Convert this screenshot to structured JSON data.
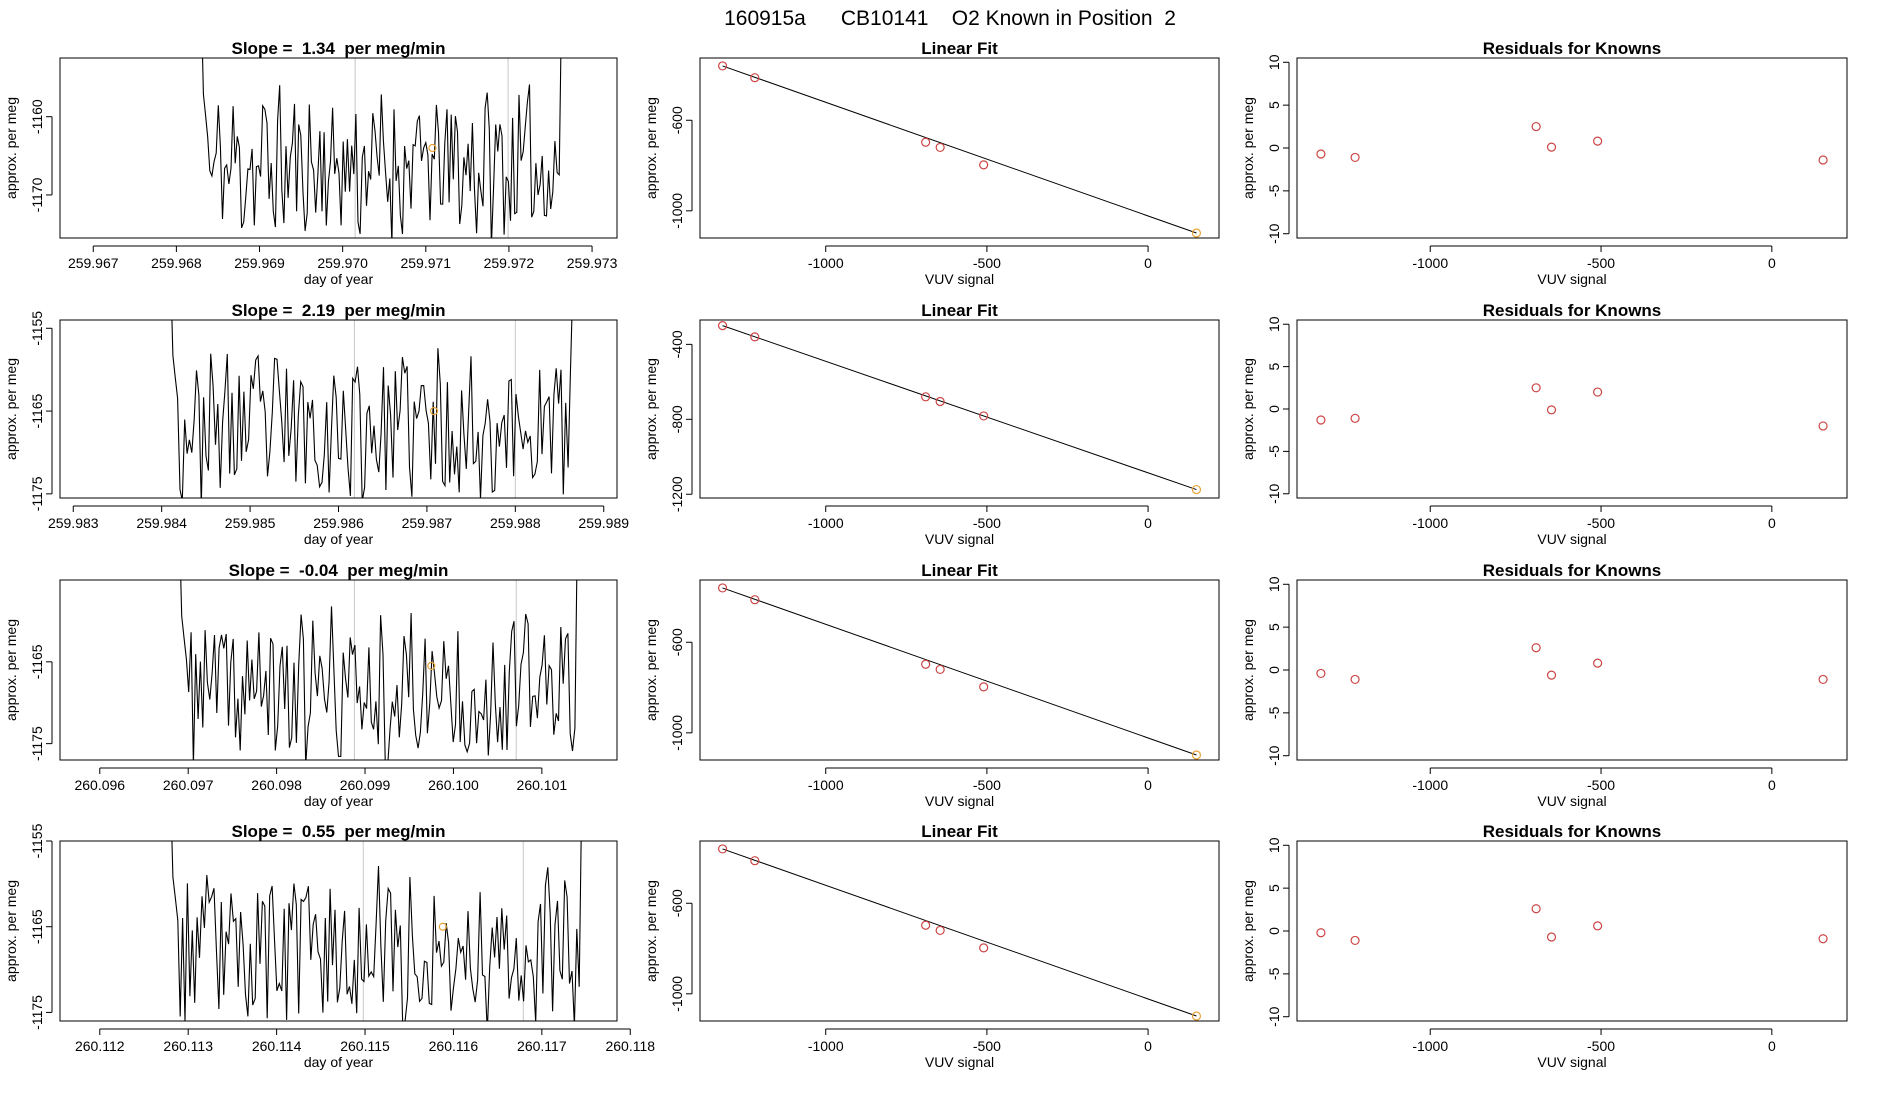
{
  "figure_title": "160915a      CB10141    O2 Known in Position  2",
  "colors": {
    "trace": "#000000",
    "marker": "#e8a33a",
    "residual": "#cc4444",
    "grid": "#c8c8c8",
    "fit": "#000000"
  },
  "chart_data": [
    {
      "type": "line",
      "row": 0,
      "col": 0,
      "title": "Slope =  1.34  per meg/min",
      "xlabel": "day of year",
      "ylabel": "approx. per meg",
      "xlim": [
        259.9666,
        259.9733
      ],
      "ylim": [
        -1175.5,
        -1152.5
      ],
      "xticks": [
        "259.967",
        "259.968",
        "259.969",
        "259.970",
        "259.971",
        "259.972",
        "259.973"
      ],
      "yticks": [
        -1160,
        -1170
      ],
      "vlines": [
        259.97015,
        259.97199
      ],
      "series_start": 259.9683,
      "series_end": 259.97263,
      "seed": 11,
      "highlight": {
        "x": 259.97108,
        "y": -1164
      }
    },
    {
      "type": "line",
      "row": 1,
      "col": 0,
      "title": "Slope =  2.19  per meg/min",
      "xlabel": "day of year",
      "ylabel": "approx. per meg",
      "xlim": [
        259.98285,
        259.98915
      ],
      "ylim": [
        -1175.5,
        -1154
      ],
      "xticks": [
        "259.983",
        "259.984",
        "259.985",
        "259.986",
        "259.987",
        "259.988",
        "259.989"
      ],
      "yticks": [
        -1155,
        -1165,
        -1175
      ],
      "vlines": [
        259.98618,
        259.988
      ],
      "series_start": 259.9841,
      "series_end": 259.98865,
      "seed": 23,
      "highlight": {
        "x": 259.98708,
        "y": -1165
      }
    },
    {
      "type": "line",
      "row": 2,
      "col": 0,
      "title": "Slope =  -0.04  per meg/min",
      "xlabel": "day of year",
      "ylabel": "approx. per meg",
      "xlim": [
        260.09555,
        260.10185
      ],
      "ylim": [
        -1177,
        -1155
      ],
      "xticks": [
        "260.096",
        "260.097",
        "260.098",
        "260.099",
        "260.100",
        "260.101"
      ],
      "yticks": [
        -1165,
        -1175
      ],
      "vlines": [
        260.09888,
        260.10071
      ],
      "series_start": 260.0969,
      "series_end": 260.1014,
      "seed": 37,
      "highlight": {
        "x": 260.09975,
        "y": -1165.5
      }
    },
    {
      "type": "line",
      "row": 3,
      "col": 0,
      "title": "Slope =  0.55  per meg/min",
      "xlabel": "day of year",
      "ylabel": "approx. per meg",
      "xlim": [
        260.11155,
        260.11785
      ],
      "ylim": [
        -1176,
        -1155
      ],
      "xticks": [
        "260.112",
        "260.113",
        "260.114",
        "260.115",
        "260.116",
        "260.117",
        "260.118"
      ],
      "yticks": [
        -1155,
        -1165,
        -1175
      ],
      "vlines": [
        260.11498,
        260.11679
      ],
      "series_start": 260.1128,
      "series_end": 260.11745,
      "seed": 53,
      "highlight": {
        "x": 260.11588,
        "y": -1165
      }
    },
    {
      "type": "scatter",
      "row": 0,
      "col": 1,
      "title": "Linear Fit",
      "xlabel": "VUV signal",
      "ylabel": "approx. per meg",
      "xlim": [
        -1390,
        220
      ],
      "ylim": [
        -1120,
        -325
      ],
      "xticks": [
        -1000,
        -500,
        0
      ],
      "yticks": [
        -600,
        -1000
      ],
      "points": [
        [
          -1320,
          -360
        ],
        [
          -1220,
          -412
        ],
        [
          -690,
          -697
        ],
        [
          -645,
          -720
        ],
        [
          -510,
          -797
        ],
        [
          150,
          -1098
        ]
      ],
      "highlight_index": 5,
      "fit_line": [
        [
          -1320,
          -360
        ],
        [
          150,
          -1098
        ]
      ]
    },
    {
      "type": "scatter",
      "row": 1,
      "col": 1,
      "title": "Linear Fit",
      "xlabel": "VUV signal",
      "ylabel": "approx. per meg",
      "xlim": [
        -1390,
        220
      ],
      "ylim": [
        -1220,
        -270
      ],
      "xticks": [
        -1000,
        -500,
        0
      ],
      "yticks": [
        -400,
        -800,
        -1200
      ],
      "points": [
        [
          -1320,
          -300
        ],
        [
          -1220,
          -360
        ],
        [
          -690,
          -680
        ],
        [
          -645,
          -705
        ],
        [
          -510,
          -782
        ],
        [
          150,
          -1175
        ]
      ],
      "highlight_index": 5,
      "fit_line": [
        [
          -1320,
          -300
        ],
        [
          150,
          -1175
        ]
      ]
    },
    {
      "type": "scatter",
      "row": 2,
      "col": 1,
      "title": "Linear Fit",
      "xlabel": "VUV signal",
      "ylabel": "approx. per meg",
      "xlim": [
        -1390,
        220
      ],
      "ylim": [
        -1120,
        -325
      ],
      "xticks": [
        -1000,
        -500,
        0
      ],
      "yticks": [
        -600,
        -1000
      ],
      "points": [
        [
          -1320,
          -360
        ],
        [
          -1220,
          -412
        ],
        [
          -690,
          -697
        ],
        [
          -645,
          -720
        ],
        [
          -510,
          -797
        ],
        [
          150,
          -1098
        ]
      ],
      "highlight_index": 5,
      "fit_line": [
        [
          -1320,
          -360
        ],
        [
          150,
          -1098
        ]
      ]
    },
    {
      "type": "scatter",
      "row": 3,
      "col": 1,
      "title": "Linear Fit",
      "xlabel": "VUV signal",
      "ylabel": "approx. per meg",
      "xlim": [
        -1390,
        220
      ],
      "ylim": [
        -1120,
        -325
      ],
      "xticks": [
        -1000,
        -500,
        0
      ],
      "yticks": [
        -600,
        -1000
      ],
      "points": [
        [
          -1320,
          -360
        ],
        [
          -1220,
          -412
        ],
        [
          -690,
          -697
        ],
        [
          -645,
          -720
        ],
        [
          -510,
          -797
        ],
        [
          150,
          -1098
        ]
      ],
      "highlight_index": 5,
      "fit_line": [
        [
          -1320,
          -360
        ],
        [
          150,
          -1098
        ]
      ]
    },
    {
      "type": "scatter",
      "row": 0,
      "col": 2,
      "title": "Residuals for Knowns",
      "xlabel": "VUV signal",
      "ylabel": "approx. per meg",
      "xlim": [
        -1390,
        220
      ],
      "ylim": [
        -10.5,
        10.5
      ],
      "xticks": [
        -1000,
        -500,
        0
      ],
      "yticks": [
        10,
        5,
        0,
        -5,
        -10
      ],
      "points": [
        [
          -1320,
          -0.7
        ],
        [
          -1220,
          -1.1
        ],
        [
          -690,
          2.5
        ],
        [
          -645,
          0.1
        ],
        [
          -510,
          0.8
        ],
        [
          150,
          -1.4
        ]
      ]
    },
    {
      "type": "scatter",
      "row": 1,
      "col": 2,
      "title": "Residuals for Knowns",
      "xlabel": "VUV signal",
      "ylabel": "approx. per meg",
      "xlim": [
        -1390,
        220
      ],
      "ylim": [
        -10.5,
        10.5
      ],
      "xticks": [
        -1000,
        -500,
        0
      ],
      "yticks": [
        10,
        5,
        0,
        -5,
        -10
      ],
      "points": [
        [
          -1320,
          -1.3
        ],
        [
          -1220,
          -1.1
        ],
        [
          -690,
          2.5
        ],
        [
          -645,
          -0.1
        ],
        [
          -510,
          2.0
        ],
        [
          150,
          -2.0
        ]
      ]
    },
    {
      "type": "scatter",
      "row": 2,
      "col": 2,
      "title": "Residuals for Knowns",
      "xlabel": "VUV signal",
      "ylabel": "approx. per meg",
      "xlim": [
        -1390,
        220
      ],
      "ylim": [
        -10.5,
        10.5
      ],
      "xticks": [
        -1000,
        -500,
        0
      ],
      "yticks": [
        10,
        5,
        0,
        -5,
        -10
      ],
      "points": [
        [
          -1320,
          -0.4
        ],
        [
          -1220,
          -1.1
        ],
        [
          -690,
          2.6
        ],
        [
          -645,
          -0.6
        ],
        [
          -510,
          0.8
        ],
        [
          150,
          -1.1
        ]
      ]
    },
    {
      "type": "scatter",
      "row": 3,
      "col": 2,
      "title": "Residuals for Knowns",
      "xlabel": "VUV signal",
      "ylabel": "approx. per meg",
      "xlim": [
        -1390,
        220
      ],
      "ylim": [
        -10.5,
        10.5
      ],
      "xticks": [
        -1000,
        -500,
        0
      ],
      "yticks": [
        10,
        5,
        0,
        -5,
        -10
      ],
      "points": [
        [
          -1320,
          -0.2
        ],
        [
          -1220,
          -1.1
        ],
        [
          -690,
          2.6
        ],
        [
          -645,
          -0.7
        ],
        [
          -510,
          0.6
        ],
        [
          150,
          -0.9
        ]
      ]
    }
  ]
}
